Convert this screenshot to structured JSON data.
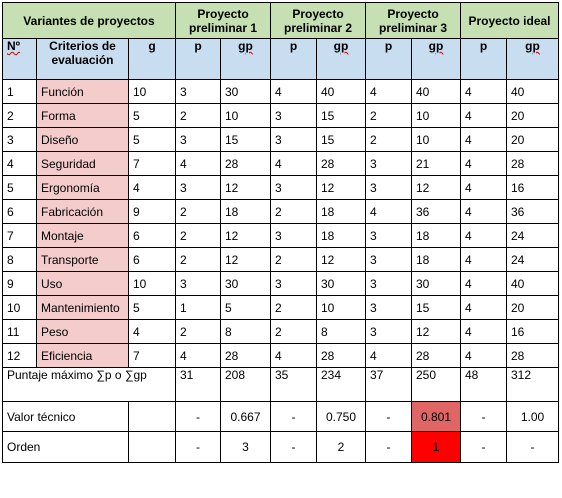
{
  "header": {
    "variants_label": "Variantes de proyectos",
    "projects": [
      "Proyecto preliminar 1",
      "Proyecto preliminar 2",
      "Proyecto preliminar 3",
      "Proyecto ideal"
    ]
  },
  "subheader": {
    "number": "Nº",
    "criteria": "Criterios de evaluación",
    "g": "g",
    "p": "p",
    "gp": "gp"
  },
  "rows": [
    {
      "n": "1",
      "criterion": "Función",
      "g": "10",
      "cols": [
        "3",
        "30",
        "4",
        "40",
        "4",
        "40",
        "4",
        "40"
      ]
    },
    {
      "n": "2",
      "criterion": "Forma",
      "g": "5",
      "cols": [
        "2",
        "10",
        "3",
        "15",
        "2",
        "10",
        "4",
        "20"
      ]
    },
    {
      "n": "3",
      "criterion": "Diseño",
      "g": "5",
      "cols": [
        "3",
        "15",
        "3",
        "15",
        "2",
        "10",
        "4",
        "20"
      ]
    },
    {
      "n": "4",
      "criterion": "Seguridad",
      "g": "7",
      "cols": [
        "4",
        "28",
        "4",
        "28",
        "3",
        "21",
        "4",
        "28"
      ]
    },
    {
      "n": "5",
      "criterion": "Ergonomía",
      "g": "4",
      "cols": [
        "3",
        "12",
        "3",
        "12",
        "3",
        "12",
        "4",
        "16"
      ]
    },
    {
      "n": "6",
      "criterion": "Fabricación",
      "g": "9",
      "cols": [
        "2",
        "18",
        "2",
        "18",
        "4",
        "36",
        "4",
        "36"
      ]
    },
    {
      "n": "7",
      "criterion": "Montaje",
      "g": "6",
      "cols": [
        "2",
        "12",
        "3",
        "18",
        "3",
        "18",
        "4",
        "24"
      ]
    },
    {
      "n": "8",
      "criterion": "Transporte",
      "g": "6",
      "cols": [
        "2",
        "12",
        "2",
        "12",
        "3",
        "18",
        "4",
        "24"
      ]
    },
    {
      "n": "9",
      "criterion": "Uso",
      "g": "10",
      "cols": [
        "3",
        "30",
        "3",
        "30",
        "3",
        "30",
        "4",
        "40"
      ]
    },
    {
      "n": "10",
      "criterion": "Mantenimiento",
      "g": "5",
      "cols": [
        "1",
        "5",
        "2",
        "10",
        "3",
        "15",
        "4",
        "20"
      ]
    },
    {
      "n": "11",
      "criterion": "Peso",
      "g": "4",
      "cols": [
        "2",
        "8",
        "2",
        "8",
        "3",
        "12",
        "4",
        "16"
      ]
    },
    {
      "n": "12",
      "criterion": "Eficiencia",
      "g": "7",
      "cols": [
        "4",
        "28",
        "4",
        "28",
        "4",
        "28",
        "4",
        "28"
      ]
    }
  ],
  "totals": {
    "label": "Puntaje máximo ∑p o ∑gp",
    "cols": [
      "31",
      "208",
      "35",
      "234",
      "37",
      "250",
      "48",
      "312"
    ]
  },
  "technical_value": {
    "label": "Valor técnico",
    "cols": [
      "-",
      "0.667",
      "-",
      "0.750",
      "-",
      "0.801",
      "-",
      "1.00"
    ]
  },
  "order": {
    "label": "Orden",
    "cols": [
      "-",
      "3",
      "-",
      "2",
      "-",
      "1",
      "-",
      "-"
    ]
  },
  "colors": {
    "header_green": "#c6e0b4",
    "subheader_blue": "#c9ddf0",
    "criteria_pink": "#f4cccc",
    "highlight_value": "#e06666",
    "highlight_order": "#ff0000"
  }
}
